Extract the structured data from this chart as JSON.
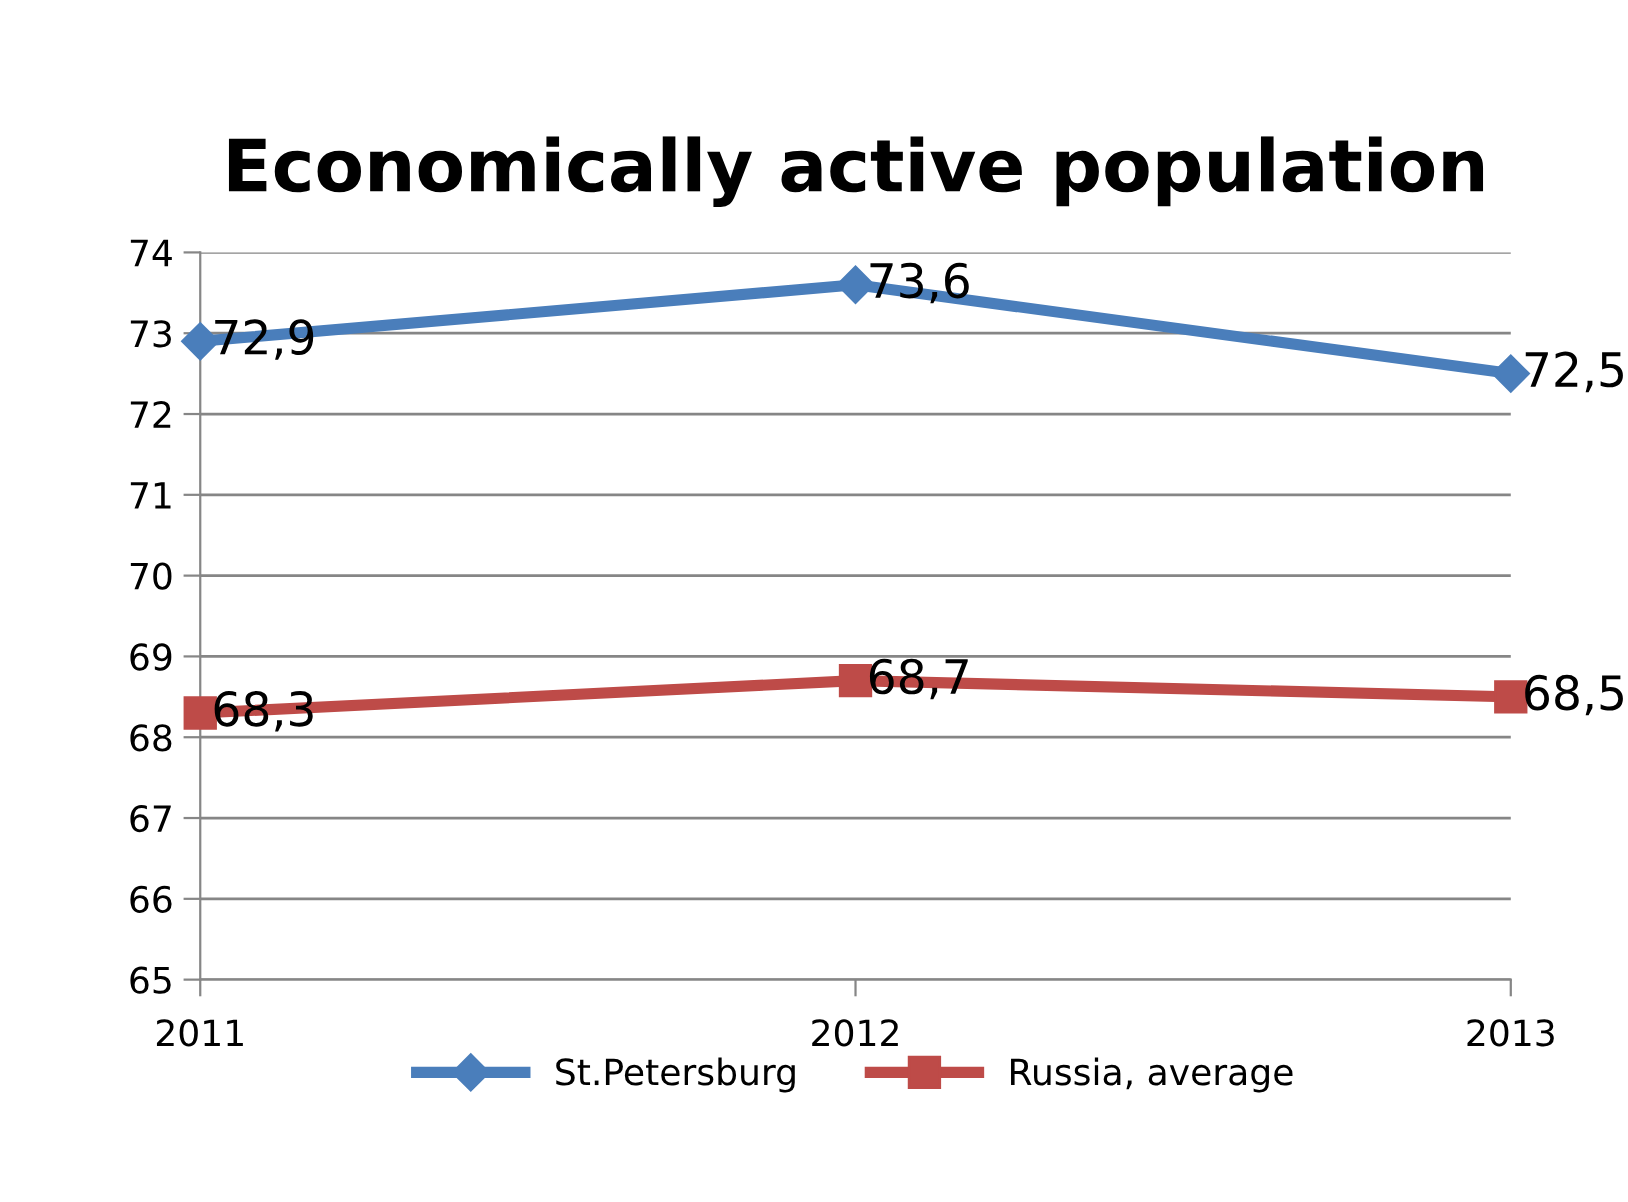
{
  "chart_data": {
    "type": "line",
    "title": "Economically active population",
    "categories": [
      "2011",
      "2012",
      "2013"
    ],
    "series": [
      {
        "name": "St.Petersburg",
        "color": "#4a7ebb",
        "marker": "diamond",
        "values": [
          72.9,
          73.6,
          72.5
        ],
        "value_labels": [
          "72,9",
          "73,6",
          "72,5"
        ]
      },
      {
        "name": "Russia, average",
        "color": "#be4b48",
        "marker": "square",
        "values": [
          68.3,
          68.7,
          68.5
        ],
        "value_labels": [
          "68,3",
          "68,7",
          "68,5"
        ]
      }
    ],
    "ylim": [
      65,
      74
    ],
    "yticks": [
      65,
      66,
      67,
      68,
      69,
      70,
      71,
      72,
      73,
      74
    ],
    "grid": "y",
    "legend": "bottom"
  }
}
